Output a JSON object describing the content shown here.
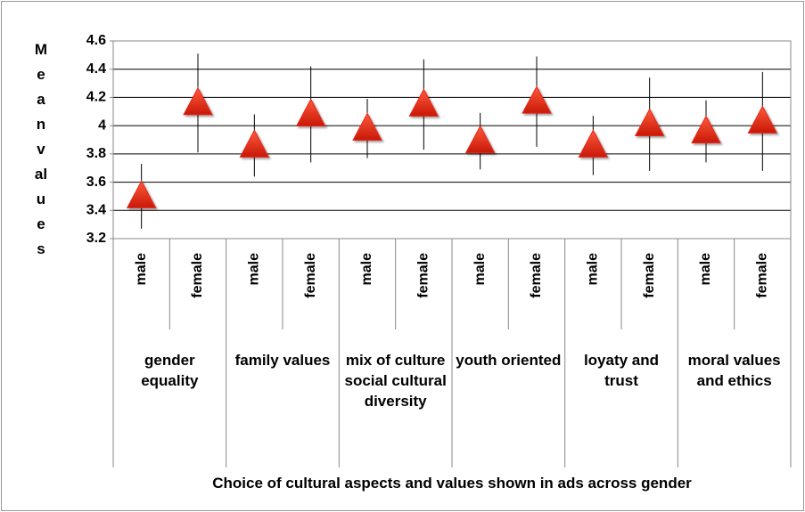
{
  "chart_data": {
    "type": "errorbar",
    "y_label": "Mean values",
    "x_label": "Choice of cultural aspects and values shown in ads across gender",
    "groups": [
      "gender equality",
      "family values",
      "mix of culture social cultural diversity",
      "youth oriented",
      "loyaty and trust",
      "moral values and ethics"
    ],
    "categories": [
      "male",
      "female",
      "male",
      "female",
      "male",
      "female",
      "male",
      "female",
      "male",
      "female",
      "male",
      "female"
    ],
    "values": [
      3.5,
      4.16,
      3.86,
      4.08,
      3.98,
      4.15,
      3.89,
      4.17,
      3.86,
      4.01,
      3.96,
      4.03
    ],
    "errors": [
      0.23,
      0.35,
      0.22,
      0.34,
      0.21,
      0.32,
      0.2,
      0.32,
      0.21,
      0.33,
      0.22,
      0.35
    ],
    "color": "#e8261a",
    "ylim": [
      3.2,
      4.6
    ],
    "yticks": [
      3.2,
      3.4,
      3.6,
      3.8,
      4,
      4.2,
      4.4,
      4.6
    ],
    "grid": true
  }
}
